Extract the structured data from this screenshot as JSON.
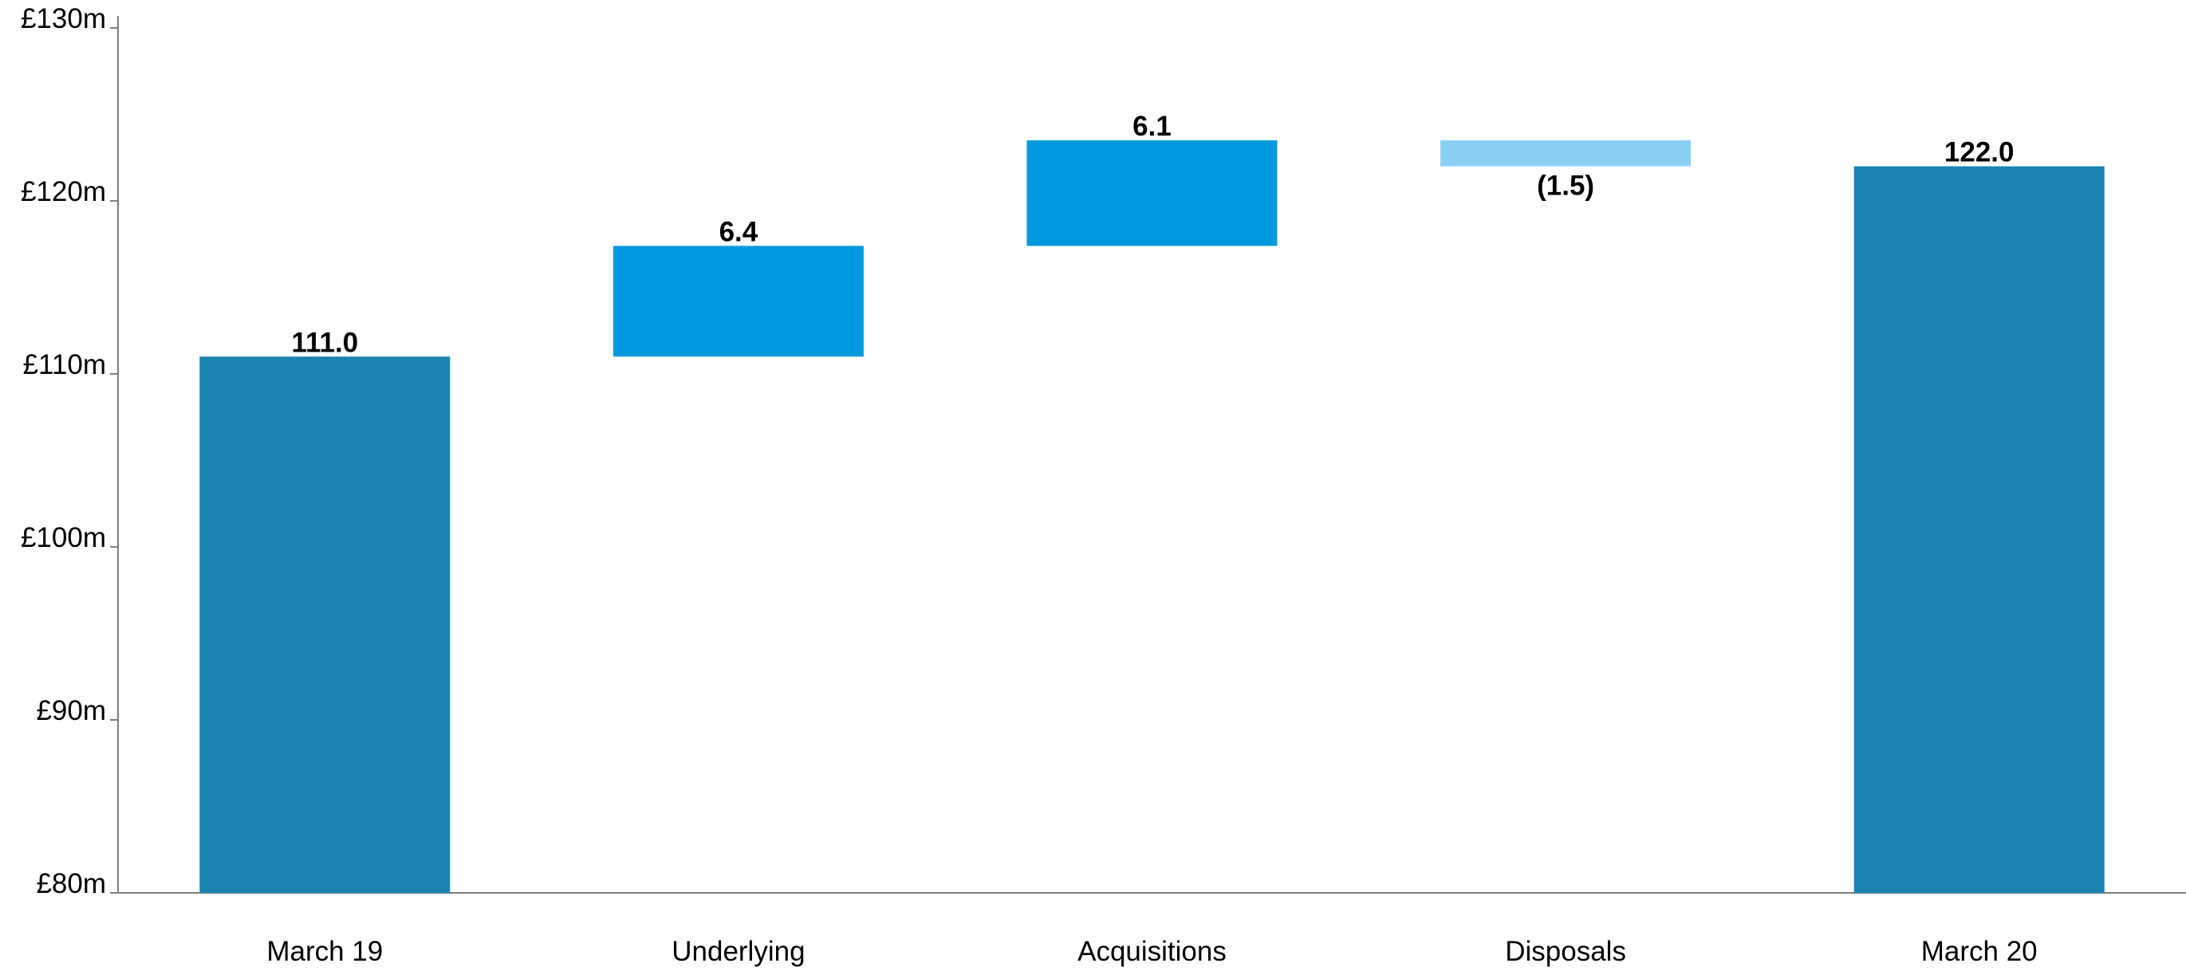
{
  "chart_data": {
    "type": "bar",
    "subtype": "waterfall",
    "title": "",
    "xlabel": "",
    "ylabel": "",
    "ylim": [
      80,
      130
    ],
    "yticks": [
      80,
      90,
      100,
      110,
      120,
      130
    ],
    "ytick_labels": [
      "£80m",
      "£90m",
      "£100m",
      "£110m",
      "£120m",
      "£130m"
    ],
    "grid": false,
    "legend": "none",
    "categories": [
      "March 19",
      "Underlying",
      "Acquisitions",
      "Disposals",
      "March 20"
    ],
    "bars": [
      {
        "category": "March 19",
        "kind": "total",
        "base": 80,
        "value": 111.0,
        "label": "111.0",
        "color": "#1a84b0"
      },
      {
        "category": "Underlying",
        "kind": "increase",
        "start": 111.0,
        "delta": 6.4,
        "label": "6.4",
        "color": "#0099dd"
      },
      {
        "category": "Acquisitions",
        "kind": "increase",
        "start": 117.4,
        "delta": 6.1,
        "label": "6.1",
        "color": "#0099dd"
      },
      {
        "category": "Disposals",
        "kind": "decrease",
        "start": 123.5,
        "delta": -1.5,
        "label": "(1.5)",
        "color": "#89cff3"
      },
      {
        "category": "March 20",
        "kind": "total",
        "base": 80,
        "value": 122.0,
        "label": "122.0",
        "color": "#1a84b0"
      }
    ],
    "colors": {
      "total": "#1a84b0",
      "increase": "#0099dd",
      "decrease": "#89cff3",
      "axis": "#7f7f7f"
    }
  }
}
